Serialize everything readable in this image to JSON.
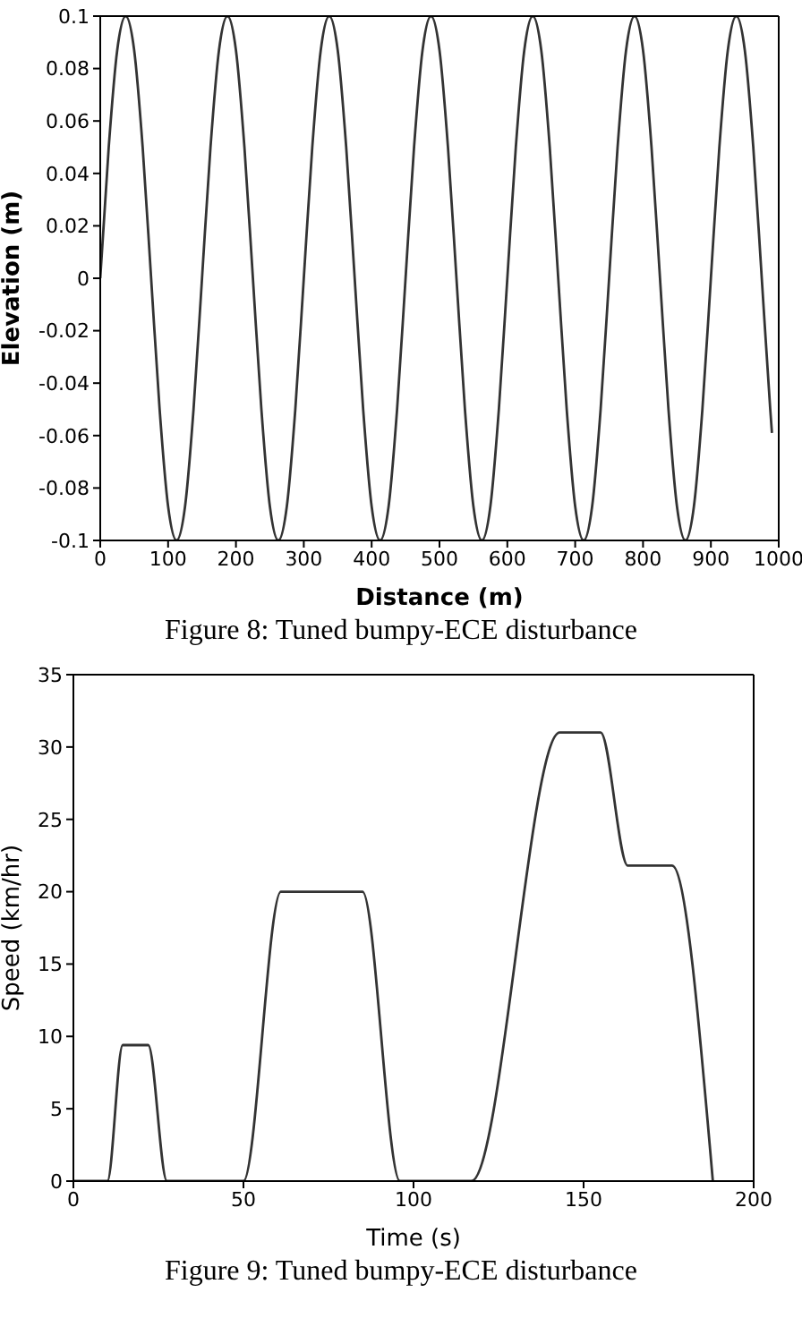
{
  "chart_data": [
    {
      "type": "line",
      "title": "Figure 8: Tuned bumpy-ECE disturbance",
      "xlabel": "Distance (m)",
      "ylabel": "Elevation (m)",
      "x": [
        0,
        12.5,
        25,
        37.5,
        50,
        62.5,
        75,
        87.5,
        100,
        112.5,
        125,
        137.5,
        150,
        162.5,
        175,
        187.5,
        200,
        212.5,
        225,
        237.5,
        250,
        262.5,
        275,
        287.5,
        300,
        312.5,
        325,
        337.5,
        350,
        362.5,
        375,
        387.5,
        400,
        412.5,
        425,
        437.5,
        450,
        462.5,
        475,
        487.5,
        500,
        512.5,
        525,
        537.5,
        550,
        562.5,
        575,
        587.5,
        600,
        612.5,
        625,
        637.5,
        650,
        662.5,
        675,
        687.5,
        700,
        712.5,
        725,
        737.5,
        750,
        762.5,
        775,
        787.5,
        800,
        812.5,
        825,
        837.5,
        850,
        862.5,
        875,
        887.5,
        900,
        912.5,
        925,
        937.5,
        950,
        962.5,
        975,
        987.5,
        990
      ],
      "series": [
        {
          "color": "#333333",
          "values": [
            0,
            0.05,
            0.087,
            0.1,
            0.087,
            0.05,
            0,
            -0.05,
            -0.087,
            -0.1,
            -0.087,
            -0.05,
            0,
            0.05,
            0.087,
            0.1,
            0.087,
            0.05,
            0,
            -0.05,
            -0.087,
            -0.1,
            -0.087,
            -0.05,
            0,
            0.05,
            0.087,
            0.1,
            0.087,
            0.05,
            0,
            -0.05,
            -0.087,
            -0.1,
            -0.087,
            -0.05,
            0,
            0.05,
            0.087,
            0.1,
            0.087,
            0.05,
            0,
            -0.05,
            -0.087,
            -0.1,
            -0.087,
            -0.05,
            0,
            0.05,
            0.087,
            0.1,
            0.087,
            0.05,
            0,
            -0.05,
            -0.087,
            -0.1,
            -0.087,
            -0.05,
            0,
            0.05,
            0.087,
            0.1,
            0.087,
            0.05,
            0,
            -0.05,
            -0.087,
            -0.1,
            -0.087,
            -0.05,
            0,
            0.05,
            0.087,
            0.1,
            0.087,
            0.05,
            0,
            -0.05,
            -0.059
          ]
        }
      ],
      "xlim": [
        0,
        1000
      ],
      "xticks": [
        0,
        100,
        200,
        300,
        400,
        500,
        600,
        700,
        800,
        900,
        1000
      ],
      "ylim": [
        -0.1,
        0.1
      ],
      "yticks": [
        -0.1,
        -0.08,
        -0.06,
        -0.04,
        -0.02,
        0,
        0.02,
        0.04,
        0.06,
        0.08,
        0.1
      ],
      "marker": "none",
      "line_style": "solid",
      "grid": false,
      "legend": false
    },
    {
      "type": "line",
      "title": "Figure 9: Tuned bumpy-ECE disturbance",
      "xlabel": "Time (s)",
      "ylabel": "Speed (km/hr)",
      "x": [
        0,
        10,
        14.5,
        22,
        27.5,
        50,
        61,
        85,
        96,
        117,
        143,
        155,
        163,
        176,
        188
      ],
      "series": [
        {
          "color": "#333333",
          "values": [
            0,
            0,
            9.4,
            9.4,
            0,
            0,
            20,
            20,
            0,
            0,
            31,
            31,
            21.8,
            21.8,
            0
          ]
        }
      ],
      "xlim": [
        0,
        200
      ],
      "xticks": [
        0,
        50,
        100,
        150,
        200
      ],
      "ylim": [
        0,
        35
      ],
      "yticks": [
        0,
        5,
        10,
        15,
        20,
        25,
        30,
        35
      ],
      "marker": "none",
      "line_style": "solid",
      "grid": false,
      "legend": false
    }
  ]
}
